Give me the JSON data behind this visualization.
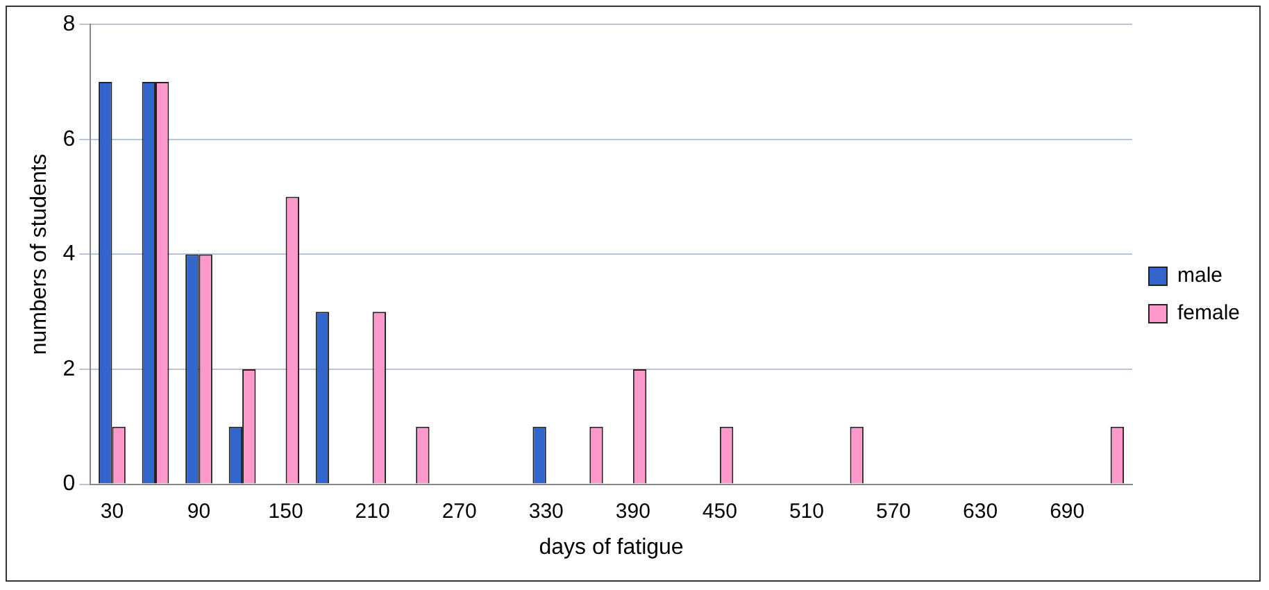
{
  "chart_data": {
    "type": "bar",
    "xlabel": "days of fatigue",
    "ylabel": "numbers of students",
    "categories": [
      "30",
      null,
      "90",
      null,
      "150",
      null,
      "210",
      null,
      "270",
      null,
      "330",
      null,
      "390",
      null,
      "450",
      null,
      "510",
      null,
      "570",
      null,
      "630",
      null,
      "690",
      null
    ],
    "series": [
      {
        "name": "male",
        "color": "#3366cc",
        "values": [
          7,
          7,
          4,
          1,
          0,
          3,
          0,
          0,
          0,
          0,
          1,
          0,
          0,
          0,
          0,
          0,
          0,
          0,
          0,
          0,
          0,
          0,
          0,
          0
        ]
      },
      {
        "name": "female",
        "color": "#ff99cc",
        "values": [
          1,
          7,
          4,
          2,
          5,
          0,
          3,
          1,
          0,
          0,
          0,
          1,
          2,
          0,
          1,
          0,
          0,
          1,
          0,
          0,
          0,
          0,
          0,
          1
        ]
      }
    ],
    "ylim": [
      0,
      8
    ],
    "yticks": [
      0,
      2,
      4,
      6,
      8
    ],
    "grid": "y",
    "legend": "right"
  }
}
